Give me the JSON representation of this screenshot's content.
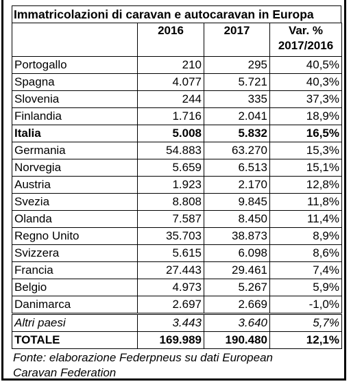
{
  "title": "Immatricolazioni di caravan e autocaravan in Europa",
  "columns": [
    "2016",
    "2017"
  ],
  "change_header": [
    "Var. %",
    "2017/2016"
  ],
  "rows": [
    [
      "Portogallo",
      "210",
      "295",
      "40,5%"
    ],
    [
      "Spagna",
      "4.077",
      "5.721",
      "40,3%"
    ],
    [
      "Slovenia",
      "244",
      "335",
      "37,3%"
    ],
    [
      "Finlandia",
      "1.716",
      "2.041",
      "18,9%"
    ],
    [
      "Italia",
      "5.008",
      "5.832",
      "16,5%"
    ],
    [
      "Germania",
      "54.883",
      "63.270",
      "15,3%"
    ],
    [
      "Norvegia",
      "5.659",
      "6.513",
      "15,1%"
    ],
    [
      "Austria",
      "1.923",
      "2.170",
      "12,8%"
    ],
    [
      "Svezia",
      "8.808",
      "9.845",
      "11,8%"
    ],
    [
      "Olanda",
      "7.587",
      "8.450",
      "11,4%"
    ],
    [
      "Regno Unito",
      "35.703",
      "38.873",
      "8,9%"
    ],
    [
      "Svizzera",
      "5.615",
      "6.098",
      "8,6%"
    ],
    [
      "Francia",
      "27.443",
      "29.461",
      "7,4%"
    ],
    [
      "Belgio",
      "4.973",
      "5.267",
      "5,9%"
    ],
    [
      "Danimarca",
      "2.697",
      "2.669",
      "-1,0%"
    ]
  ],
  "other": [
    "Altri paesi",
    "3.443",
    "3.640",
    "5,7%"
  ],
  "total": [
    "TOTALE",
    "169.989",
    "190.480",
    "12,1%"
  ],
  "footnote": [
    "Fonte: elaborazione Federpneus su dati European",
    "Caravan Federation"
  ]
}
